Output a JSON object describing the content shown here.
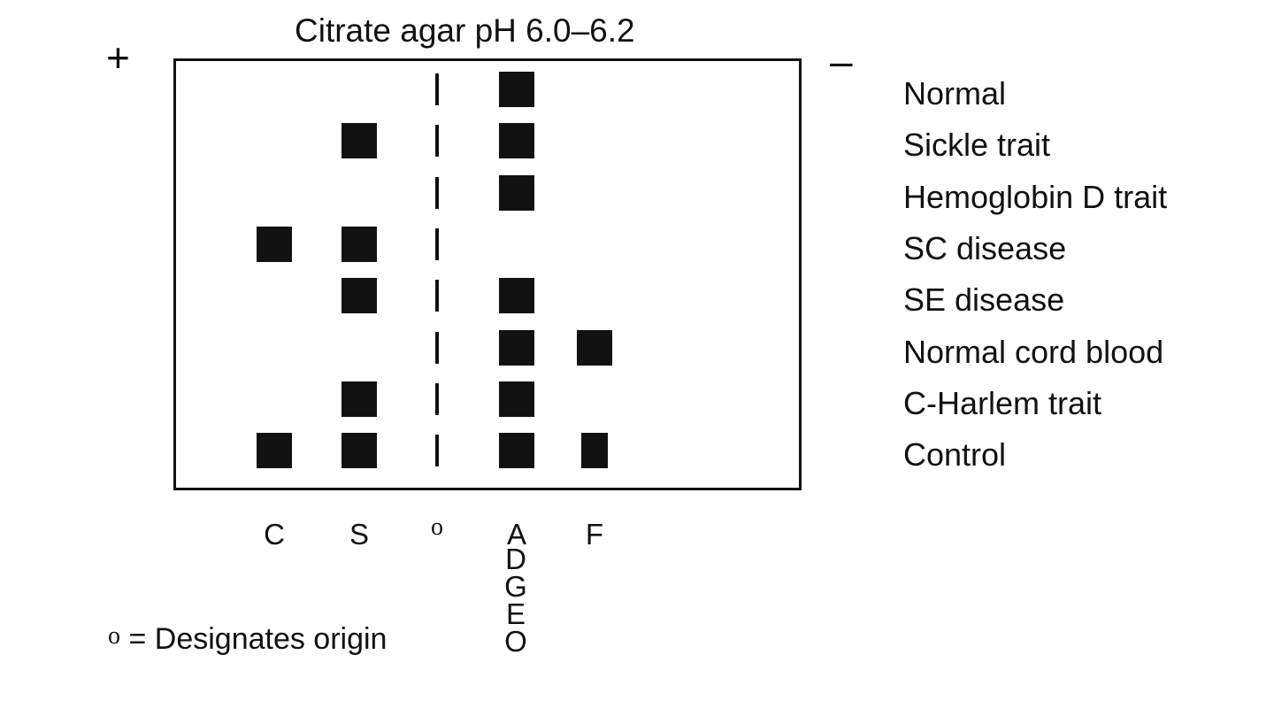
{
  "title": "Citrate agar pH 6.0–6.2",
  "anode_symbol": "+",
  "cathode_symbol": "–",
  "lanes": [
    {
      "key": "C",
      "label": "C"
    },
    {
      "key": "S",
      "label": "S"
    },
    {
      "key": "O",
      "label": "o"
    },
    {
      "key": "A",
      "label": "A"
    },
    {
      "key": "F",
      "label": "F"
    }
  ],
  "lane_A_comigrating": [
    "D",
    "G",
    "E",
    "O"
  ],
  "rows": [
    {
      "label": "Normal",
      "bands": [
        "A"
      ]
    },
    {
      "label": "Sickle trait",
      "bands": [
        "S",
        "A"
      ]
    },
    {
      "label": "Hemoglobin D trait",
      "bands": [
        "A"
      ]
    },
    {
      "label": "SC disease",
      "bands": [
        "C",
        "S"
      ]
    },
    {
      "label": "SE disease",
      "bands": [
        "S",
        "A"
      ]
    },
    {
      "label": "Normal cord blood",
      "bands": [
        "A",
        "F"
      ]
    },
    {
      "label": "C-Harlem trait",
      "bands": [
        "S",
        "A"
      ]
    },
    {
      "label": "Control",
      "bands": [
        "C",
        "S",
        "A",
        "F"
      ]
    }
  ],
  "legend": {
    "symbol": "o",
    "equals": "=",
    "text": "Designates origin"
  }
}
